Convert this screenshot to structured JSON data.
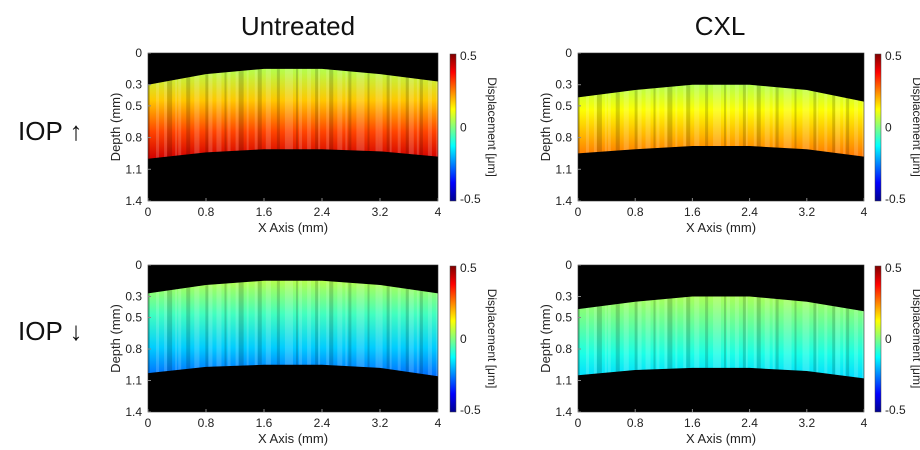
{
  "columns": [
    "Untreated",
    "CXL"
  ],
  "rows": [
    "IOP ↑",
    "IOP ↓"
  ],
  "colors": {
    "background": "#000000",
    "colormap": [
      "#00008f",
      "#0000ff",
      "#0080ff",
      "#00ffff",
      "#80ff80",
      "#ffff00",
      "#ff8000",
      "#ff0000",
      "#800000"
    ]
  },
  "chart_data": [
    {
      "type": "heatmap",
      "panel": "untreated-iop-up",
      "xlabel": "X Axis (mm)",
      "ylabel": "Depth (mm)",
      "xticks": [
        "0",
        "0.8",
        "1.6",
        "2.4",
        "3.2",
        "4"
      ],
      "yticks": [
        "0",
        "0.3",
        "0.5",
        "0.8",
        "1.1",
        "1.4"
      ],
      "xlim": [
        0,
        4
      ],
      "ylim": [
        1.4,
        0
      ],
      "colorbar": {
        "label": "Displacement [μm]",
        "ticks": [
          "0.5",
          "0",
          "-0.5"
        ],
        "range": [
          -0.5,
          0.5
        ]
      },
      "top_surface_depth": [
        0.3,
        0.2,
        0.15,
        0.15,
        0.2,
        0.27
      ],
      "bottom_surface_depth": [
        1.0,
        0.94,
        0.91,
        0.91,
        0.93,
        0.98
      ],
      "displacement_top": 0.05,
      "displacement_bottom": 0.42
    },
    {
      "type": "heatmap",
      "panel": "cxl-iop-up",
      "xlabel": "X Axis (mm)",
      "ylabel": "Depth (mm)",
      "xticks": [
        "0",
        "0.8",
        "1.6",
        "2.4",
        "3.2",
        "4"
      ],
      "yticks": [
        "0",
        "0.3",
        "0.5",
        "0.8",
        "1.1",
        "1.4"
      ],
      "xlim": [
        0,
        4
      ],
      "ylim": [
        1.4,
        0
      ],
      "colorbar": {
        "label": "Displacement [μm]",
        "ticks": [
          "0.5",
          "0",
          "-0.5"
        ],
        "range": [
          -0.5,
          0.5
        ]
      },
      "top_surface_depth": [
        0.42,
        0.35,
        0.3,
        0.3,
        0.35,
        0.46
      ],
      "bottom_surface_depth": [
        0.95,
        0.91,
        0.88,
        0.88,
        0.91,
        0.98
      ],
      "displacement_top": 0.05,
      "displacement_bottom": 0.26
    },
    {
      "type": "heatmap",
      "panel": "untreated-iop-down",
      "xlabel": "X Axis (mm)",
      "ylabel": "Depth (mm)",
      "xticks": [
        "0",
        "0.8",
        "1.6",
        "2.4",
        "3.2",
        "4"
      ],
      "yticks": [
        "0",
        "0.3",
        "0.5",
        "0.8",
        "1.1",
        "1.4"
      ],
      "xlim": [
        0,
        4
      ],
      "ylim": [
        1.4,
        0
      ],
      "colorbar": {
        "label": "Displacement [μm]",
        "ticks": [
          "0.5",
          "0",
          "-0.5"
        ],
        "range": [
          -0.5,
          0.5
        ]
      },
      "top_surface_depth": [
        0.27,
        0.19,
        0.15,
        0.15,
        0.19,
        0.27
      ],
      "bottom_surface_depth": [
        1.03,
        0.97,
        0.95,
        0.95,
        0.98,
        1.06
      ],
      "displacement_top": 0.05,
      "displacement_bottom": -0.27
    },
    {
      "type": "heatmap",
      "panel": "cxl-iop-down",
      "xlabel": "X Axis (mm)",
      "ylabel": "Depth (mm)",
      "xticks": [
        "0",
        "0.8",
        "1.6",
        "2.4",
        "3.2",
        "4"
      ],
      "yticks": [
        "0",
        "0.3",
        "0.5",
        "0.8",
        "1.1",
        "1.4"
      ],
      "xlim": [
        0,
        4
      ],
      "ylim": [
        1.4,
        0
      ],
      "colorbar": {
        "label": "Displacement [μm]",
        "ticks": [
          "0.5",
          "0",
          "-0.5"
        ],
        "range": [
          -0.5,
          0.5
        ]
      },
      "top_surface_depth": [
        0.42,
        0.35,
        0.3,
        0.3,
        0.35,
        0.44
      ],
      "bottom_surface_depth": [
        1.05,
        1.0,
        0.98,
        0.98,
        1.01,
        1.08
      ],
      "displacement_top": 0.04,
      "displacement_bottom": -0.16
    }
  ]
}
